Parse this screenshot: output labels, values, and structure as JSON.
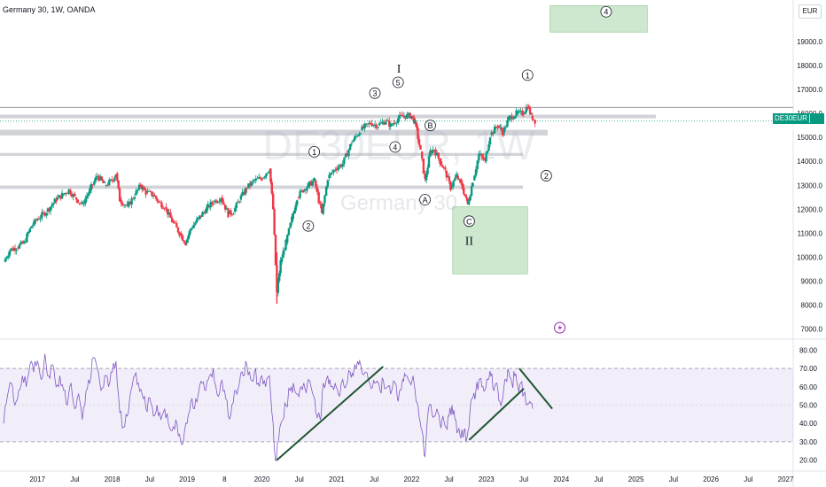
{
  "header": {
    "title": "Germany 30, 1W, OANDA",
    "currency": "EUR"
  },
  "watermark": {
    "symbol": "DE30EUR, 1W",
    "name": "Germany 30"
  },
  "price_label": {
    "symbol": "DE30EUR",
    "value": "15683.2",
    "color": "#089981"
  },
  "chart_data": [
    {
      "type": "candlestick",
      "title": "Germany 30, 1W, OANDA",
      "currency": "EUR",
      "ylim": [
        6500,
        20000
      ],
      "y_ticks": [
        "19000.0",
        "18000.0",
        "17000.0",
        "16000.0",
        "15000.0",
        "14000.0",
        "13000.0",
        "12000.0",
        "11000.0",
        "10000.0",
        "9000.0",
        "8000.0",
        "7000.0"
      ],
      "last_price": 15683.2,
      "x_ticks": [
        "2017",
        "Jul",
        "2018",
        "Jul",
        "2019",
        "8",
        "2020",
        "Jul",
        "2021",
        "Jul",
        "2022",
        "Jul",
        "2023",
        "Jul",
        "2024",
        "Jul",
        "2025",
        "Jul",
        "2026",
        "Jul",
        "2027"
      ],
      "x_tick_time": [
        2017.0,
        2017.5,
        2018.0,
        2018.5,
        2019.0,
        2019.5,
        2020.0,
        2020.5,
        2021.0,
        2021.5,
        2022.0,
        2022.5,
        2023.0,
        2023.5,
        2024.0,
        2024.5,
        2025.0,
        2025.5,
        2026.0,
        2026.5,
        2027.0
      ],
      "xlim": [
        2016.5,
        2027.1
      ],
      "close_series": [
        [
          2016.55,
          9800
        ],
        [
          2016.63,
          10300
        ],
        [
          2016.72,
          10400
        ],
        [
          2016.82,
          10600
        ],
        [
          2016.92,
          11300
        ],
        [
          2017.0,
          11600
        ],
        [
          2017.12,
          11900
        ],
        [
          2017.25,
          12400
        ],
        [
          2017.33,
          12600
        ],
        [
          2017.42,
          12800
        ],
        [
          2017.5,
          12500
        ],
        [
          2017.6,
          12200
        ],
        [
          2017.7,
          12800
        ],
        [
          2017.8,
          13400
        ],
        [
          2017.9,
          13000
        ],
        [
          2018.0,
          13200
        ],
        [
          2018.05,
          13500
        ],
        [
          2018.1,
          12400
        ],
        [
          2018.2,
          12100
        ],
        [
          2018.3,
          12600
        ],
        [
          2018.38,
          13000
        ],
        [
          2018.45,
          12700
        ],
        [
          2018.55,
          12600
        ],
        [
          2018.62,
          12300
        ],
        [
          2018.7,
          12100
        ],
        [
          2018.8,
          11500
        ],
        [
          2018.9,
          11000
        ],
        [
          2018.98,
          10600
        ],
        [
          2019.05,
          11200
        ],
        [
          2019.15,
          11600
        ],
        [
          2019.28,
          12100
        ],
        [
          2019.35,
          12300
        ],
        [
          2019.45,
          12500
        ],
        [
          2019.55,
          11800
        ],
        [
          2019.62,
          11900
        ],
        [
          2019.7,
          12400
        ],
        [
          2019.8,
          12900
        ],
        [
          2019.9,
          13200
        ],
        [
          2020.0,
          13300
        ],
        [
          2020.1,
          13700
        ],
        [
          2020.15,
          12000
        ],
        [
          2020.2,
          8500
        ],
        [
          2020.25,
          9800
        ],
        [
          2020.32,
          10600
        ],
        [
          2020.4,
          11600
        ],
        [
          2020.47,
          12500
        ],
        [
          2020.55,
          12800
        ],
        [
          2020.62,
          13000
        ],
        [
          2020.7,
          13200
        ],
        [
          2020.8,
          11800
        ],
        [
          2020.88,
          13300
        ],
        [
          2020.98,
          13700
        ],
        [
          2021.08,
          13900
        ],
        [
          2021.2,
          14800
        ],
        [
          2021.32,
          15300
        ],
        [
          2021.45,
          15600
        ],
        [
          2021.55,
          15500
        ],
        [
          2021.65,
          15700
        ],
        [
          2021.72,
          15500
        ],
        [
          2021.82,
          15800
        ],
        [
          2021.9,
          15900
        ],
        [
          2022.0,
          15900
        ],
        [
          2022.05,
          15600
        ],
        [
          2022.12,
          14400
        ],
        [
          2022.18,
          13200
        ],
        [
          2022.25,
          14400
        ],
        [
          2022.3,
          14500
        ],
        [
          2022.38,
          14000
        ],
        [
          2022.45,
          13600
        ],
        [
          2022.52,
          12900
        ],
        [
          2022.6,
          13400
        ],
        [
          2022.68,
          12900
        ],
        [
          2022.75,
          12200
        ],
        [
          2022.82,
          13200
        ],
        [
          2022.9,
          14300
        ],
        [
          2022.98,
          14000
        ],
        [
          2023.05,
          15100
        ],
        [
          2023.15,
          15500
        ],
        [
          2023.22,
          15200
        ],
        [
          2023.3,
          15800
        ],
        [
          2023.4,
          16000
        ],
        [
          2023.48,
          16000
        ],
        [
          2023.55,
          16300
        ],
        [
          2023.6,
          15900
        ],
        [
          2023.65,
          15700
        ]
      ],
      "resistance_zones": [
        [
          15800,
          15950
        ],
        [
          15080,
          15320
        ],
        [
          14230,
          14350
        ],
        [
          12850,
          12990
        ]
      ],
      "horizontal_lines": [
        16250
      ],
      "wave_labels": [
        {
          "text": "I",
          "price": 17900,
          "time": 2021.83
        },
        {
          "text": "5",
          "price": 17300,
          "time": 2021.82
        },
        {
          "text": "3",
          "price": 16850,
          "time": 2021.51
        },
        {
          "text": "B",
          "price": 15500,
          "time": 2022.25
        },
        {
          "text": "4",
          "price": 14600,
          "time": 2021.78
        },
        {
          "text": "1",
          "price": 14400,
          "time": 2020.7
        },
        {
          "text": "2",
          "price": 11300,
          "time": 2020.62
        },
        {
          "text": "A",
          "price": 12400,
          "time": 2022.18
        },
        {
          "text": "C",
          "price": 11500,
          "time": 2022.77
        },
        {
          "text": "II",
          "price": 10700,
          "time": 2022.77
        },
        {
          "text": "1",
          "price": 17600,
          "time": 2023.55
        },
        {
          "text": "2",
          "price": 13400,
          "time": 2023.8
        },
        {
          "text": "4",
          "price": 20250,
          "time": 2024.6
        }
      ],
      "boxes": [
        {
          "time": [
            2022.55,
            2023.55
          ],
          "price": [
            9300,
            12100
          ]
        },
        {
          "time": [
            2023.85,
            2025.15
          ],
          "price": [
            19400,
            20500
          ]
        }
      ]
    },
    {
      "type": "line",
      "indicator": "RSI",
      "ylim": [
        15,
        85
      ],
      "y_ticks": [
        "80.00",
        "70.00",
        "60.00",
        "50.00",
        "40.00",
        "30.00",
        "20.00"
      ],
      "band": [
        30,
        70
      ],
      "series": [
        {
          "values": [
            [
              2016.55,
              40
            ],
            [
              2016.6,
              55
            ],
            [
              2016.65,
              62
            ],
            [
              2016.7,
              50
            ],
            [
              2016.75,
              58
            ],
            [
              2016.8,
              66
            ],
            [
              2016.85,
              60
            ],
            [
              2016.9,
              72
            ],
            [
              2016.95,
              68
            ],
            [
              2017.0,
              74
            ],
            [
              2017.05,
              64
            ],
            [
              2017.1,
              78
            ],
            [
              2017.15,
              66
            ],
            [
              2017.2,
              72
            ],
            [
              2017.25,
              60
            ],
            [
              2017.3,
              66
            ],
            [
              2017.35,
              58
            ],
            [
              2017.4,
              50
            ],
            [
              2017.45,
              62
            ],
            [
              2017.5,
              48
            ],
            [
              2017.55,
              56
            ],
            [
              2017.6,
              42
            ],
            [
              2017.65,
              58
            ],
            [
              2017.7,
              62
            ],
            [
              2017.75,
              76
            ],
            [
              2017.8,
              70
            ],
            [
              2017.85,
              58
            ],
            [
              2017.9,
              66
            ],
            [
              2017.95,
              60
            ],
            [
              2018.0,
              68
            ],
            [
              2018.05,
              74
            ],
            [
              2018.1,
              46
            ],
            [
              2018.15,
              38
            ],
            [
              2018.2,
              44
            ],
            [
              2018.25,
              58
            ],
            [
              2018.3,
              66
            ],
            [
              2018.35,
              62
            ],
            [
              2018.4,
              56
            ],
            [
              2018.45,
              48
            ],
            [
              2018.5,
              54
            ],
            [
              2018.55,
              44
            ],
            [
              2018.6,
              50
            ],
            [
              2018.65,
              42
            ],
            [
              2018.7,
              48
            ],
            [
              2018.75,
              40
            ],
            [
              2018.8,
              36
            ],
            [
              2018.85,
              42
            ],
            [
              2018.9,
              34
            ],
            [
              2018.95,
              30
            ],
            [
              2019.0,
              40
            ],
            [
              2019.05,
              52
            ],
            [
              2019.1,
              48
            ],
            [
              2019.15,
              56
            ],
            [
              2019.2,
              62
            ],
            [
              2019.25,
              58
            ],
            [
              2019.3,
              66
            ],
            [
              2019.35,
              70
            ],
            [
              2019.4,
              56
            ],
            [
              2019.45,
              62
            ],
            [
              2019.5,
              58
            ],
            [
              2019.55,
              44
            ],
            [
              2019.6,
              50
            ],
            [
              2019.65,
              58
            ],
            [
              2019.7,
              62
            ],
            [
              2019.75,
              66
            ],
            [
              2019.8,
              72
            ],
            [
              2019.85,
              64
            ],
            [
              2019.9,
              68
            ],
            [
              2019.95,
              62
            ],
            [
              2020.0,
              66
            ],
            [
              2020.05,
              60
            ],
            [
              2020.1,
              66
            ],
            [
              2020.15,
              40
            ],
            [
              2020.18,
              20
            ],
            [
              2020.22,
              30
            ],
            [
              2020.28,
              42
            ],
            [
              2020.32,
              50
            ],
            [
              2020.38,
              58
            ],
            [
              2020.42,
              62
            ],
            [
              2020.48,
              56
            ],
            [
              2020.52,
              60
            ],
            [
              2020.58,
              58
            ],
            [
              2020.62,
              64
            ],
            [
              2020.68,
              56
            ],
            [
              2020.72,
              46
            ],
            [
              2020.78,
              42
            ],
            [
              2020.82,
              62
            ],
            [
              2020.88,
              66
            ],
            [
              2020.92,
              60
            ],
            [
              2020.98,
              62
            ],
            [
              2021.02,
              56
            ],
            [
              2021.08,
              64
            ],
            [
              2021.12,
              60
            ],
            [
              2021.18,
              68
            ],
            [
              2021.22,
              66
            ],
            [
              2021.28,
              74
            ],
            [
              2021.32,
              72
            ],
            [
              2021.38,
              68
            ],
            [
              2021.42,
              64
            ],
            [
              2021.48,
              60
            ],
            [
              2021.52,
              62
            ],
            [
              2021.58,
              58
            ],
            [
              2021.62,
              64
            ],
            [
              2021.68,
              60
            ],
            [
              2021.72,
              56
            ],
            [
              2021.78,
              62
            ],
            [
              2021.82,
              52
            ],
            [
              2021.88,
              64
            ],
            [
              2021.92,
              66
            ],
            [
              2021.98,
              62
            ],
            [
              2022.02,
              66
            ],
            [
              2022.06,
              52
            ],
            [
              2022.1,
              44
            ],
            [
              2022.14,
              36
            ],
            [
              2022.18,
              22
            ],
            [
              2022.22,
              46
            ],
            [
              2022.26,
              50
            ],
            [
              2022.3,
              44
            ],
            [
              2022.34,
              48
            ],
            [
              2022.38,
              40
            ],
            [
              2022.42,
              44
            ],
            [
              2022.46,
              38
            ],
            [
              2022.5,
              44
            ],
            [
              2022.54,
              50
            ],
            [
              2022.58,
              42
            ],
            [
              2022.62,
              36
            ],
            [
              2022.66,
              32
            ],
            [
              2022.7,
              36
            ],
            [
              2022.74,
              32
            ],
            [
              2022.78,
              46
            ],
            [
              2022.82,
              54
            ],
            [
              2022.86,
              58
            ],
            [
              2022.9,
              64
            ],
            [
              2022.94,
              60
            ],
            [
              2022.98,
              58
            ],
            [
              2023.02,
              64
            ],
            [
              2023.06,
              66
            ],
            [
              2023.1,
              58
            ],
            [
              2023.14,
              62
            ],
            [
              2023.18,
              52
            ],
            [
              2023.22,
              54
            ],
            [
              2023.26,
              64
            ],
            [
              2023.3,
              68
            ],
            [
              2023.34,
              62
            ],
            [
              2023.38,
              66
            ],
            [
              2023.42,
              60
            ],
            [
              2023.46,
              62
            ],
            [
              2023.5,
              56
            ],
            [
              2023.54,
              50
            ],
            [
              2023.58,
              52
            ],
            [
              2023.62,
              48
            ]
          ]
        }
      ],
      "trendlines": [
        [
          [
            2020.2,
            20
          ],
          [
            2021.62,
            71
          ]
        ],
        [
          [
            2022.77,
            31
          ],
          [
            2023.5,
            59
          ]
        ],
        [
          [
            2023.44,
            70
          ],
          [
            2023.88,
            48
          ]
        ]
      ]
    }
  ]
}
